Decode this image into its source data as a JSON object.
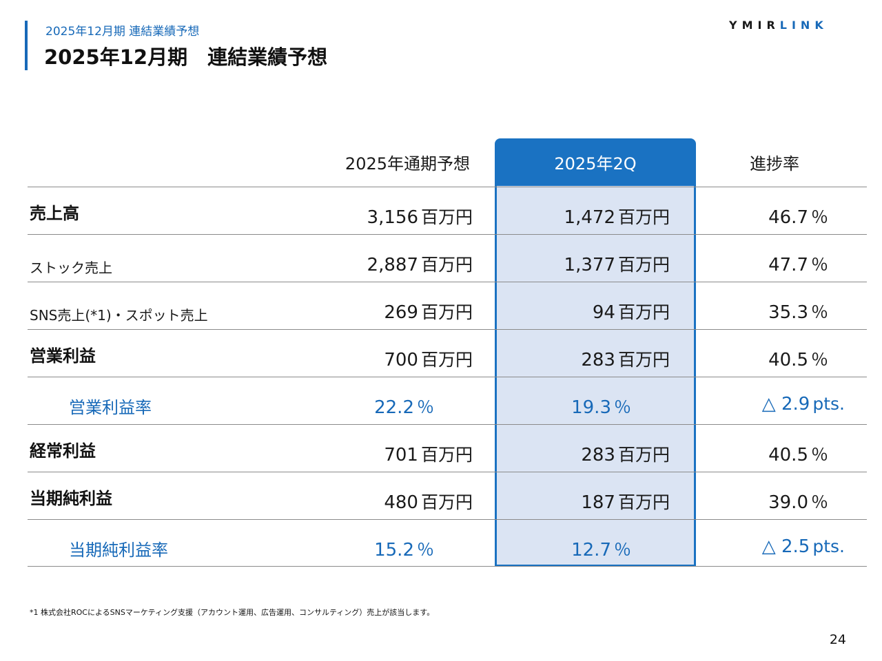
{
  "header": {
    "subtitle": "2025年12月期 連結業績予想",
    "title": "2025年12月期　連結業績予想",
    "logo_part1": "YMIR",
    "logo_part2": "LINK"
  },
  "table": {
    "columns": [
      "2025年通期予想",
      "2025年2Q",
      "進捗率"
    ],
    "rows": [
      {
        "label": "売上高",
        "fy": "3,156",
        "fy_unit": "百万円",
        "q2": "1,472",
        "q2_unit": "百万円",
        "rate": "46.7",
        "rate_unit": "％"
      },
      {
        "label": "ストック売上",
        "fy": "2,887",
        "fy_unit": "百万円",
        "q2": "1,377",
        "q2_unit": "百万円",
        "rate": "47.7",
        "rate_unit": "％"
      },
      {
        "label": "SNS売上(*1)・スポット売上",
        "fy": "269",
        "fy_unit": "百万円",
        "q2": "94",
        "q2_unit": "百万円",
        "rate": "35.3",
        "rate_unit": "％"
      },
      {
        "label": "営業利益",
        "fy": "700",
        "fy_unit": "百万円",
        "q2": "283",
        "q2_unit": "百万円",
        "rate": "40.5",
        "rate_unit": "％"
      },
      {
        "label": "営業利益率",
        "fy": "22.2",
        "fy_unit": "％",
        "q2": "19.3",
        "q2_unit": "％",
        "rate": "△ 2.9",
        "rate_unit": "pts."
      },
      {
        "label": "経常利益",
        "fy": "701",
        "fy_unit": "百万円",
        "q2": "283",
        "q2_unit": "百万円",
        "rate": "40.5",
        "rate_unit": "％"
      },
      {
        "label": "当期純利益",
        "fy": "480",
        "fy_unit": "百万円",
        "q2": "187",
        "q2_unit": "百万円",
        "rate": "39.0",
        "rate_unit": "％"
      },
      {
        "label": "当期純利益率",
        "fy": "15.2",
        "fy_unit": "％",
        "q2": "12.7",
        "q2_unit": "％",
        "rate": "△ 2.5",
        "rate_unit": "pts."
      }
    ]
  },
  "footnote": "*1 株式会社ROCによるSNSマーケティング支援（アカウント運用、広告運用、コンサルティング）売上が該当します。",
  "page_number": "24",
  "colors": {
    "accent": "#1769b8",
    "highlight_header": "#1a72c2",
    "highlight_fill": "#dbe4f3"
  }
}
